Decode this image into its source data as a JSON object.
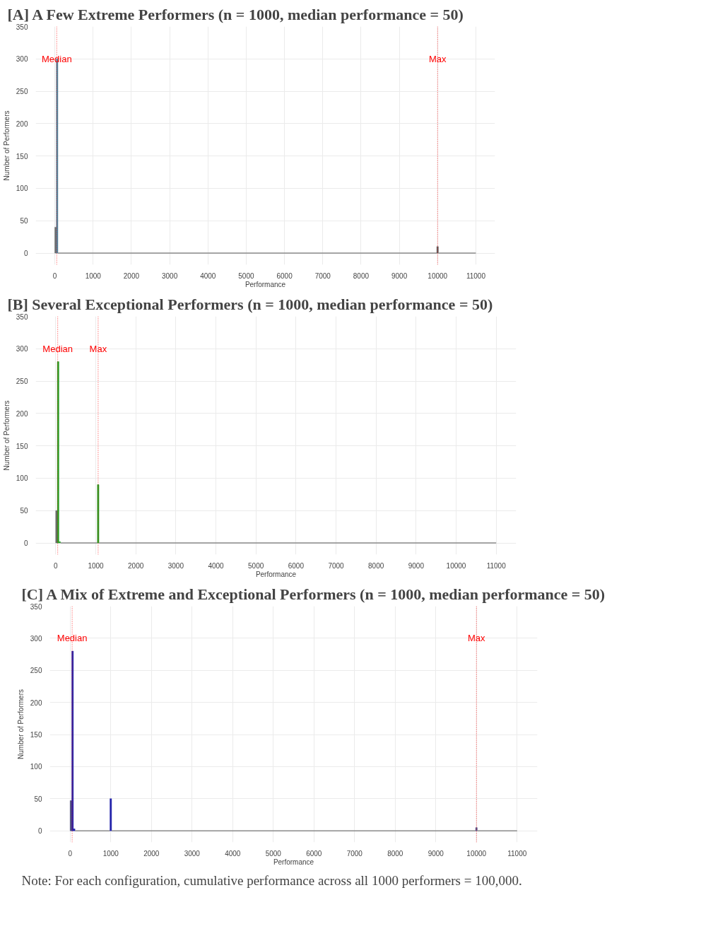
{
  "chart_data": [
    {
      "type": "histogram",
      "title": "[A] A Few Extreme Performers (n = 1000, median performance = 50)",
      "xlabel": "Performance",
      "ylabel": "Number of Performers",
      "bins": [
        0,
        40,
        80,
        9980,
        10020,
        11000
      ],
      "values": [
        40,
        300,
        0,
        10,
        0
      ],
      "colors": [
        "#6b6b6b",
        "#4a7f99",
        "#8a8a8a",
        "#555555",
        "#8a8a8a"
      ],
      "xlim": [
        -500,
        11500
      ],
      "ylim": [
        -18,
        350
      ],
      "xticks": [
        0,
        1000,
        2000,
        3000,
        4000,
        5000,
        6000,
        7000,
        8000,
        9000,
        10000,
        11000
      ],
      "yticks": [
        0,
        50,
        100,
        150,
        200,
        250,
        300,
        350
      ],
      "grid": true,
      "ref_lines": [
        {
          "axis": "x",
          "value": 50,
          "label": "Median",
          "color": "#ff0000",
          "line_style": "dotted"
        },
        {
          "axis": "x",
          "value": 10000,
          "label": "Max",
          "color": "#ff0000",
          "line_style": "dotted"
        }
      ]
    },
    {
      "type": "histogram",
      "title": "[B] Several Exceptional Performers (n = 1000, median performance = 50)",
      "xlabel": "Performance",
      "ylabel": "Number of Performers",
      "bins": [
        0,
        40,
        80,
        120,
        1040,
        1080,
        11000
      ],
      "values": [
        50,
        280,
        2,
        0,
        90,
        0
      ],
      "colors": [
        "#6b6b6b",
        "#22a022",
        "#22a022",
        "#8a8a8a",
        "#22a022",
        "#8a8a8a"
      ],
      "xlim": [
        -500,
        11500
      ],
      "ylim": [
        -18,
        350
      ],
      "xticks": [
        0,
        1000,
        2000,
        3000,
        4000,
        5000,
        6000,
        7000,
        8000,
        9000,
        10000,
        11000
      ],
      "yticks": [
        0,
        50,
        100,
        150,
        200,
        250,
        300,
        350
      ],
      "grid": true,
      "ref_lines": [
        {
          "axis": "x",
          "value": 50,
          "label": "Median",
          "color": "#ff0000",
          "line_style": "dotted"
        },
        {
          "axis": "x",
          "value": 1060,
          "label": "Max",
          "color": "#ff0000",
          "line_style": "dotted"
        }
      ]
    },
    {
      "type": "histogram",
      "title": "[C] A Mix of Extreme and Exceptional Performers (n = 1000, median performance = 50)",
      "xlabel": "Performance",
      "ylabel": "Number of Performers",
      "bins": [
        0,
        40,
        80,
        120,
        980,
        1020,
        9980,
        10020,
        11000
      ],
      "values": [
        47,
        280,
        3,
        0,
        50,
        0,
        5,
        0
      ],
      "colors": [
        "#4a4a7a",
        "#2020a8",
        "#2020a8",
        "#8a8a8a",
        "#2020a8",
        "#8a8a8a",
        "#50508a",
        "#8a8a8a"
      ],
      "xlim": [
        -500,
        11500
      ],
      "ylim": [
        -18,
        350
      ],
      "xticks": [
        0,
        1000,
        2000,
        3000,
        4000,
        5000,
        6000,
        7000,
        8000,
        9000,
        10000,
        11000
      ],
      "yticks": [
        0,
        50,
        100,
        150,
        200,
        250,
        300,
        350
      ],
      "grid": true,
      "ref_lines": [
        {
          "axis": "x",
          "value": 50,
          "label": "Median",
          "color": "#ff0000",
          "line_style": "dotted"
        },
        {
          "axis": "x",
          "value": 10000,
          "label": "Max",
          "color": "#ff0000",
          "line_style": "dotted"
        }
      ],
      "annotations": [
        "Note: For each configuration, cumulative performance across all 1000 performers = 100,000."
      ]
    }
  ]
}
